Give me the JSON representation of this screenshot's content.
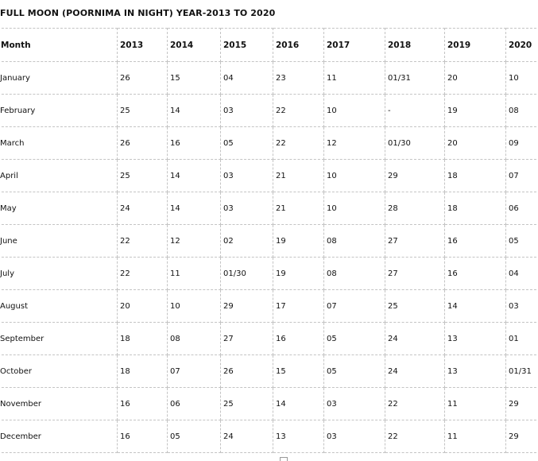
{
  "title": "FULL MOON (POORNIMA IN NIGHT) YEAR-2013 TO 2020",
  "table": {
    "headers": [
      "Month",
      "2013",
      "2014",
      "2015",
      "2016",
      "2017",
      "2018",
      "2019",
      "2020"
    ],
    "rows": [
      [
        "January",
        "26",
        "15",
        "04",
        "23",
        "11",
        "01/31",
        "20",
        "10"
      ],
      [
        "February",
        "25",
        "14",
        "03",
        "22",
        "10",
        "-",
        "19",
        "08"
      ],
      [
        "March",
        "26",
        "16",
        "05",
        "22",
        "12",
        "01/30",
        "20",
        "09"
      ],
      [
        "April",
        "25",
        "14",
        "03",
        "21",
        "10",
        "29",
        "18",
        "07"
      ],
      [
        "May",
        "24",
        "14",
        "03",
        "21",
        "10",
        "28",
        "18",
        "06"
      ],
      [
        "June",
        "22",
        "12",
        "02",
        "19",
        "08",
        "27",
        "16",
        "05"
      ],
      [
        "July",
        "22",
        "11",
        "01/30",
        "19",
        "08",
        "27",
        "16",
        "04"
      ],
      [
        "August",
        "20",
        "10",
        "29",
        "17",
        "07",
        "25",
        "14",
        "03"
      ],
      [
        "September",
        "18",
        "08",
        "27",
        "16",
        "05",
        "24",
        "13",
        "01"
      ],
      [
        "October",
        "18",
        "07",
        "26",
        "15",
        "05",
        "24",
        "13",
        "01/31"
      ],
      [
        "November",
        "16",
        "06",
        "25",
        "14",
        "03",
        "22",
        "11",
        "29"
      ],
      [
        "December",
        "16",
        "05",
        "24",
        "13",
        "03",
        "22",
        "11",
        "29"
      ]
    ]
  }
}
